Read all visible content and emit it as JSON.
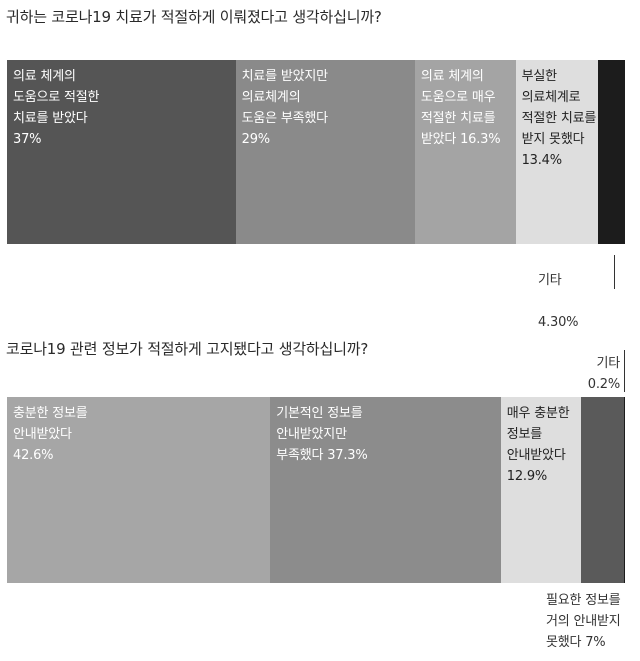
{
  "chart_data": [
    {
      "type": "bar",
      "orientation": "stacked-horizontal-100",
      "title": "귀하는 코로나19 치료가 적절하게 이뤄졌다고 생각하십니까?",
      "segments": [
        {
          "label": "의료 체계의\n도움으로 적절한\n치료를 받았다\n37%",
          "value": 37,
          "color": "#555555",
          "text_color": "#ffffff"
        },
        {
          "label": "치료를 받았지만\n의료체계의\n도움은 부족했다\n29%",
          "value": 29,
          "color": "#8a8a8a",
          "text_color": "#ffffff"
        },
        {
          "label": "의료 체계의\n도움으로 매우\n적절한 치료를\n받았다 16.3%",
          "value": 16.3,
          "color": "#a4a4a4",
          "text_color": "#ffffff"
        },
        {
          "label": "부실한\n의료체계로\n적절한 치료를\n받지 못했다\n13.4%",
          "value": 13.4,
          "color": "#dedede",
          "text_color": "#222222"
        },
        {
          "label": "기타\n\n4.30%",
          "value": 4.3,
          "color": "#1c1c1c",
          "text_color": "#333333",
          "external": true
        }
      ]
    },
    {
      "type": "bar",
      "orientation": "stacked-horizontal-100",
      "title": "코로나19 관련 정보가 적절하게 고지됐다고 생각하십니까?",
      "segments": [
        {
          "label": "충분한 정보를\n안내받았다\n42.6%",
          "value": 42.6,
          "color": "#a6a6a6",
          "text_color": "#ffffff"
        },
        {
          "label": "기본적인 정보를\n안내받았지만\n부족했다 37.3%",
          "value": 37.3,
          "color": "#8c8c8c",
          "text_color": "#ffffff"
        },
        {
          "label": "매우 충분한\n정보를\n안내받았다\n12.9%",
          "value": 12.9,
          "color": "#dedede",
          "text_color": "#222222"
        },
        {
          "label": "필요한 정보를\n거의 안내받지\n못했다 7%",
          "value": 7,
          "color": "#5a5a5a",
          "text_color": "#333333",
          "external": true
        },
        {
          "label": "기타\n0.2%",
          "value": 0.2,
          "color": "#1c1c1c",
          "text_color": "#333333",
          "external": true
        }
      ]
    }
  ]
}
